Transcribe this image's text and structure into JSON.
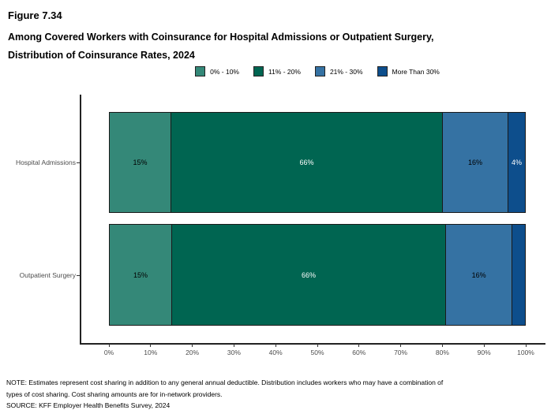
{
  "figure": {
    "number": "Figure 7.34",
    "title_lines": [
      "Among Covered Workers with Coinsurance for Hospital Admissions or Outpatient Surgery,",
      "Distribution of Coinsurance Rates, 2024"
    ]
  },
  "legend": {
    "items": [
      {
        "label": "0% - 10%",
        "color": "#348878"
      },
      {
        "label": "11% - 20%",
        "color": "#006551"
      },
      {
        "label": "21% - 30%",
        "color": "#3572a3"
      },
      {
        "label": "More Than 30%",
        "color": "#0d4e8c"
      }
    ]
  },
  "chart_data": {
    "type": "bar",
    "orientation": "horizontal-stacked",
    "title": "Among Covered Workers with Coinsurance for Hospital Admissions or Outpatient Surgery, Distribution of Coinsurance Rates, 2024",
    "categories": [
      "Hospital Admissions",
      "Outpatient Surgery"
    ],
    "series": [
      {
        "name": "0% - 10%",
        "color": "#348878",
        "label_color": "#000000",
        "values": [
          15,
          15
        ]
      },
      {
        "name": "11% - 20%",
        "color": "#006551",
        "label_color": "#ffffff",
        "values": [
          66,
          66
        ]
      },
      {
        "name": "21% - 30%",
        "color": "#3572a3",
        "label_color": "#000000",
        "values": [
          16,
          16
        ]
      },
      {
        "name": "More Than 30%",
        "color": "#0d4e8c",
        "label_color": "#ffffff",
        "values": [
          4,
          3
        ]
      }
    ],
    "segment_labels": [
      [
        "15%",
        "66%",
        "16%",
        "4%"
      ],
      [
        "15%",
        "66%",
        "16%",
        ""
      ]
    ],
    "x_ticks": [
      "0%",
      "10%",
      "20%",
      "30%",
      "40%",
      "50%",
      "60%",
      "70%",
      "80%",
      "90%",
      "100%"
    ],
    "xlim": [
      0,
      100
    ],
    "xlabel": "",
    "ylabel": "",
    "grid": false,
    "legend_position": "top-center"
  },
  "notes": {
    "lines": [
      "NOTE: Estimates represent cost sharing in addition to any general annual deductible. Distribution includes workers who may have a combination of",
      "types of cost sharing. Cost sharing amounts are for in-network providers.",
      "SOURCE: KFF Employer Health Benefits Survey, 2024"
    ]
  }
}
